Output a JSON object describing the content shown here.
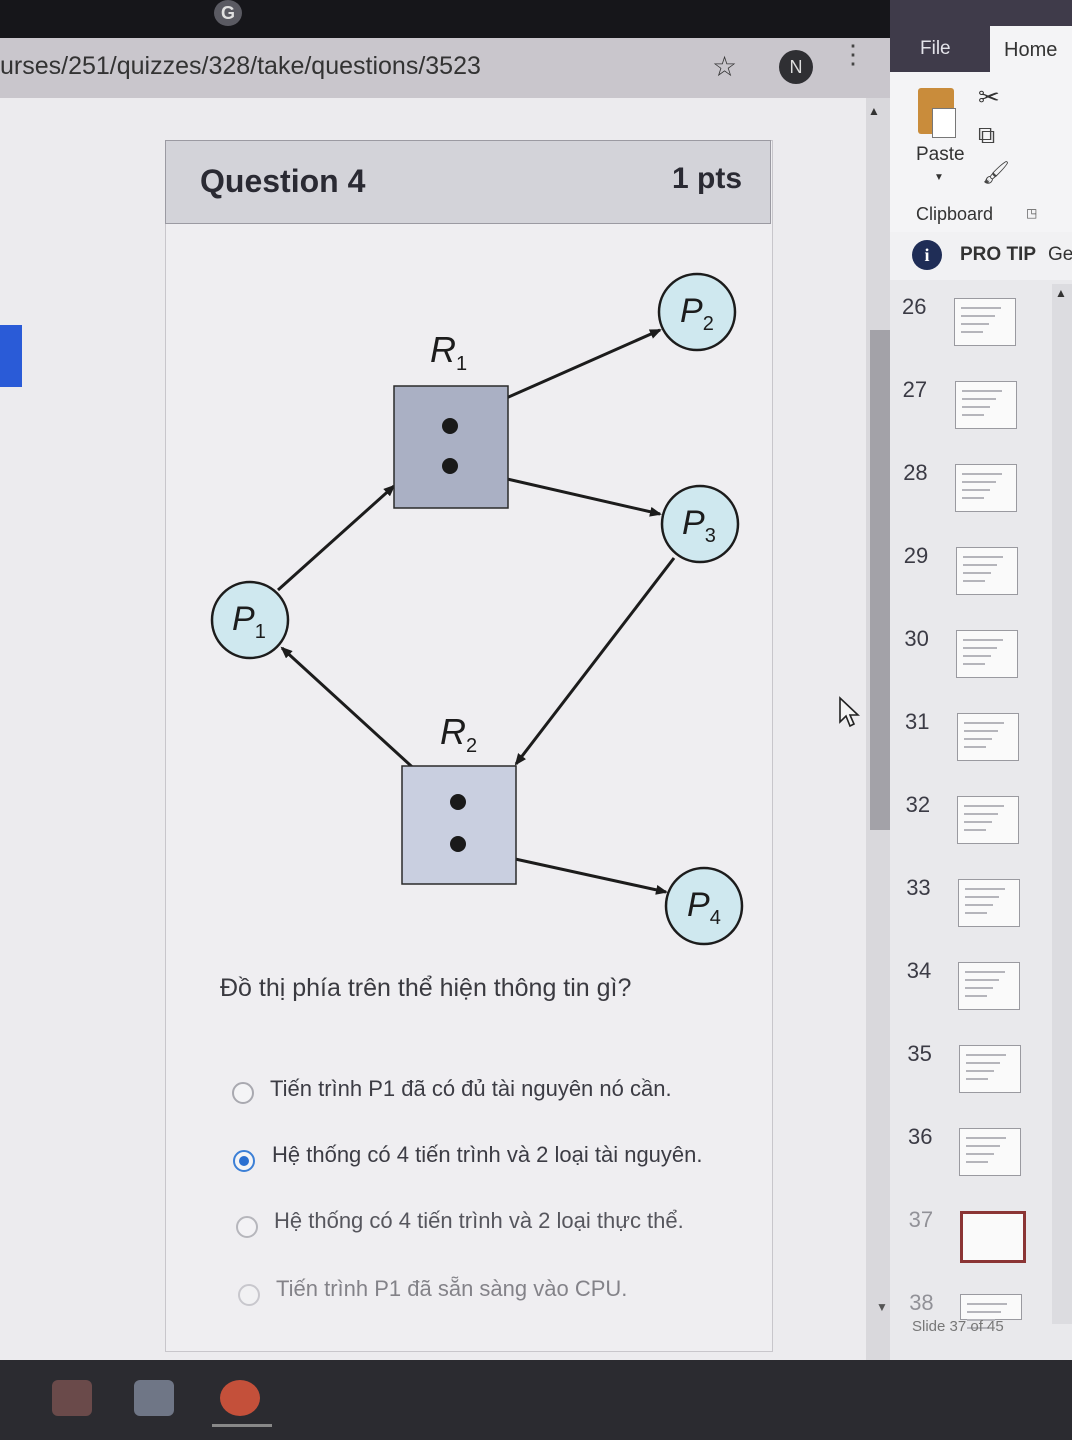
{
  "browser": {
    "url_text": "urses/251/quizzes/328/take/questions/3523",
    "star_icon": "star-icon",
    "avatar_letter": "N"
  },
  "question": {
    "title": "Question 4",
    "points": "1 pts",
    "text": "Đồ thị phía trên thể hiện thông tin gì?",
    "options": [
      {
        "label": "Tiến trình P1 đã có đủ tài nguyên nó cần.",
        "selected": false
      },
      {
        "label": "Hệ thống có 4 tiến trình và 2 loại tài nguyên.",
        "selected": true
      },
      {
        "label": "Hệ thống có 4 tiến trình và 2 loại thực thể.",
        "selected": false
      },
      {
        "label": "Tiến trình P1 đã sẵn sàng vào CPU.",
        "selected": false
      }
    ]
  },
  "diagram": {
    "processes": [
      {
        "letter": "P",
        "sub": "1"
      },
      {
        "letter": "P",
        "sub": "2"
      },
      {
        "letter": "P",
        "sub": "3"
      },
      {
        "letter": "P",
        "sub": "4"
      }
    ],
    "resources": [
      {
        "letter": "R",
        "sub": "1"
      },
      {
        "letter": "R",
        "sub": "2"
      }
    ]
  },
  "powerpoint": {
    "tabs": {
      "file": "File",
      "home": "Home"
    },
    "paste_label": "Paste",
    "clipboard_label": "Clipboard",
    "protip_label": "PRO TIP",
    "protip_cut": "Ge",
    "slides": [
      "26",
      "27",
      "28",
      "29",
      "30",
      "31",
      "32",
      "33",
      "34",
      "35",
      "36",
      "37",
      "38"
    ],
    "selected_slide": "37",
    "status": "Slide 37 of 45"
  },
  "colors": {
    "process_fill": "#cfe8ef",
    "resource_r1_fill": "#aab0c4",
    "resource_r2_fill": "#c9cfe0",
    "accent_blue": "#2a5bd7"
  }
}
